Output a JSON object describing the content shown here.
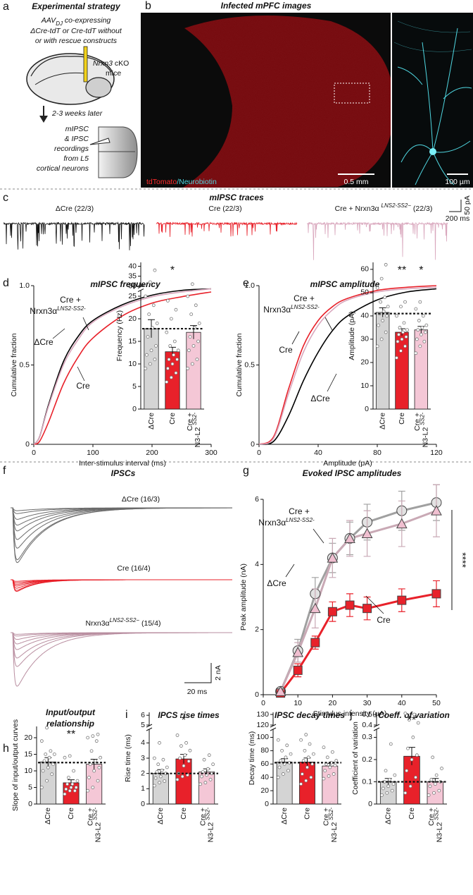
{
  "figure": {
    "a": {
      "letter": "a",
      "title": "Experimental strategy",
      "aav": "AAV",
      "aav_sub": "DJ",
      "line1_rest": " co-expressing",
      "line2": "ΔCre-tdT or Cre-tdT without",
      "line3": "or with rescue constructs",
      "mouse": "Nrxn3",
      "mouse_rest": " cKO",
      "mice": "mice",
      "wait": "2-3 weeks later",
      "recording": [
        "mIPSC",
        "& IPSC",
        "recordings",
        "from L5",
        "cortical neurons"
      ]
    },
    "b": {
      "letter": "b",
      "title": "Infected mPFC images",
      "stain1": "tdTomato",
      "stain2": "/Neurobiotin",
      "scale_main": "0.5 mm",
      "scale_inset": "100 µm"
    },
    "c": {
      "letter": "c",
      "title": "mIPSC traces",
      "labels": [
        "ΔCre (22/3)",
        "Cre (22/3)"
      ],
      "rescue": "Cre + Nrxn3α ",
      "rescue_sup": "LNS2-SS2−",
      "rescue_n": " (22/3)",
      "scale_y": "50 pA",
      "scale_x": "200 ms"
    },
    "f": {
      "letter": "f",
      "title": "IPSCs",
      "labels": [
        "ΔCre (16/3)",
        "Cre (16/4)"
      ],
      "rescue": "Nrxn3α",
      "rescue_sup": "LNS2-SS2−",
      "rescue_n": " (15/4)",
      "scale_y": "2 nA",
      "scale_x": "20 ms"
    }
  },
  "chart_data": [
    {
      "type": "line",
      "letter": "d",
      "title": "mIPSC frequency",
      "xlabel": "Inter-stimulus interval (ms)",
      "ylabel": "Cumulative fraction",
      "xlim": [
        0,
        300
      ],
      "xticks": [
        0,
        100,
        200,
        300
      ],
      "ylim": [
        0,
        1
      ],
      "yticks": [
        0,
        0.5,
        {
          "value": 1,
          "label": "1.0"
        }
      ],
      "x": [
        0,
        10,
        25,
        50,
        75,
        100,
        150,
        200,
        250,
        300
      ],
      "series": [
        {
          "name": "ΔCre",
          "color": "#000000",
          "values": [
            0,
            0.05,
            0.25,
            0.52,
            0.68,
            0.78,
            0.88,
            0.94,
            0.97,
            0.98
          ]
        },
        {
          "name": "Cre",
          "color": "#e8212a",
          "values": [
            0,
            0.02,
            0.14,
            0.38,
            0.55,
            0.67,
            0.81,
            0.89,
            0.93,
            0.96
          ]
        },
        {
          "name": "Cre +",
          "name_line2": "Nrxn3α",
          "name_sup": "LNS2-SS2-",
          "color": "#d9a7bd",
          "values": [
            0,
            0.05,
            0.24,
            0.5,
            0.66,
            0.77,
            0.87,
            0.93,
            0.96,
            0.98
          ]
        }
      ]
    },
    {
      "type": "bar",
      "ylabel": "Frequency (Hz)",
      "categories": [
        "ΔCre",
        "Cre",
        "Cre +"
      ],
      "category_line2": "N3-L2 ",
      "category_sup": "SS2-",
      "colors": [
        "#d4d4d4",
        "#e8212a",
        "#f4c7d6"
      ],
      "values": [
        17.8,
        12.7,
        17
      ],
      "errors": [
        2,
        1,
        1.5
      ],
      "reference": 17.8,
      "significance": [
        null,
        "*",
        null
      ],
      "ylim": [
        0,
        26
      ],
      "yticks": [
        0,
        5,
        10,
        15,
        20,
        25
      ],
      "ybreak": {
        "ylim": [
          30,
          42
        ],
        "yticks": [
          30,
          35,
          40
        ]
      },
      "points": [
        [
          9,
          10,
          11,
          12,
          13,
          14,
          16,
          18,
          19,
          21,
          23,
          25,
          32,
          38
        ],
        [
          6,
          7,
          8,
          9,
          10,
          11,
          11,
          12,
          13,
          14,
          15,
          17,
          20,
          22,
          24
        ],
        [
          9,
          10,
          11,
          13,
          14,
          15,
          16,
          18,
          19,
          21,
          23,
          25,
          31
        ]
      ]
    },
    {
      "type": "line",
      "letter": "e",
      "title": "mIPSC amplitude",
      "xlabel": "Amplitude (pA)",
      "ylabel": "Cumulative fraction",
      "xlim": [
        0,
        120
      ],
      "xticks": [
        0,
        40,
        80,
        120
      ],
      "ylim": [
        0,
        1
      ],
      "yticks": [
        0,
        0.5,
        {
          "value": 1,
          "label": "1.0"
        }
      ],
      "x": [
        0,
        10,
        20,
        30,
        40,
        50,
        60,
        80,
        100,
        120
      ],
      "series": [
        {
          "name": "ΔCre",
          "color": "#000000",
          "values": [
            0,
            0.02,
            0.18,
            0.4,
            0.58,
            0.72,
            0.81,
            0.91,
            0.96,
            0.98
          ]
        },
        {
          "name": "Cre",
          "color": "#e8212a",
          "values": [
            0,
            0.05,
            0.35,
            0.62,
            0.78,
            0.87,
            0.92,
            0.97,
            0.99,
            1
          ]
        },
        {
          "name": "Cre +",
          "name_line2": "Nrxn3α",
          "name_sup": "LNS2-SS2-",
          "color": "#d9a7bd",
          "values": [
            0,
            0.04,
            0.32,
            0.58,
            0.75,
            0.85,
            0.91,
            0.96,
            0.98,
            0.99
          ]
        }
      ]
    },
    {
      "type": "bar",
      "ylabel": "Amplitude (pA)",
      "categories": [
        "ΔCre",
        "Cre",
        "Cre +"
      ],
      "category_line2": "N3-L2 ",
      "category_sup": "SS2-",
      "colors": [
        "#d4d4d4",
        "#e8212a",
        "#f4c7d6"
      ],
      "values": [
        41.5,
        33,
        34
      ],
      "errors": [
        2,
        1.5,
        1.5
      ],
      "reference": 41,
      "significance": [
        null,
        "**",
        "*"
      ],
      "ylim": [
        0,
        63
      ],
      "yticks": [
        0,
        10,
        20,
        30,
        40,
        50,
        60
      ],
      "points": [
        [
          27,
          30,
          33,
          36,
          38,
          40,
          41,
          42,
          44,
          46,
          48,
          52,
          56,
          62
        ],
        [
          22,
          25,
          27,
          29,
          30,
          31,
          32,
          33,
          34,
          35,
          37,
          40,
          44,
          46
        ],
        [
          24,
          27,
          29,
          30,
          32,
          33,
          34,
          35,
          36,
          38,
          40,
          43,
          46
        ]
      ]
    },
    {
      "type": "line",
      "letter": "g",
      "title": "Evoked IPSC amplitudes",
      "xlabel": "Stimulus intensity (µA)",
      "ylabel": "Peak amplitude (nA)",
      "xlim": [
        0,
        50
      ],
      "xticks": [
        0,
        10,
        20,
        30,
        40,
        50
      ],
      "ylim": [
        0,
        6
      ],
      "yticks": [
        0,
        2,
        4,
        6
      ],
      "significance": "****",
      "x": [
        5,
        10,
        15,
        20,
        25,
        30,
        40,
        50
      ],
      "series": [
        {
          "name": "ΔCre",
          "color": "#a0a0a0",
          "marker": "circle",
          "marker_color": "#e2e2e2",
          "values": [
            0.1,
            1.35,
            3.1,
            4.2,
            4.8,
            5.3,
            5.65,
            5.9
          ],
          "errors": [
            0.05,
            0.35,
            0.5,
            0.45,
            0.5,
            0.55,
            0.6,
            0.55
          ]
        },
        {
          "name": "Cre",
          "color": "#e8212a",
          "marker": "square",
          "marker_color": "#e8212a",
          "values": [
            0.05,
            0.75,
            1.6,
            2.55,
            2.75,
            2.65,
            2.9,
            3.1
          ],
          "errors": [
            0.03,
            0.2,
            0.2,
            0.3,
            0.35,
            0.35,
            0.35,
            0.4
          ]
        },
        {
          "name": "Cre +",
          "name_line2": "Nrxn3α",
          "name_sup": "LNS2-SS2-",
          "color": "#c9a9b5",
          "marker": "triangle",
          "marker_color": "#f0bfd0",
          "values": [
            0.1,
            1.3,
            2.65,
            4.2,
            4.8,
            4.95,
            5.25,
            5.65
          ],
          "errors": [
            0.05,
            0.3,
            0.6,
            0.6,
            0.55,
            0.7,
            0.7,
            0.8
          ]
        }
      ]
    },
    {
      "type": "bar",
      "letter": "h",
      "title": [
        "Input/output",
        "relationship"
      ],
      "ylabel": "Slope of input/output curves",
      "categories": [
        "ΔCre",
        "Cre",
        "Cre +"
      ],
      "category_line2": "N3-L2 ",
      "category_sup": "SS2-",
      "colors": [
        "#d4d4d4",
        "#e8212a",
        "#f4c7d6"
      ],
      "values": [
        12.7,
        6.4,
        12
      ],
      "errors": [
        1.3,
        0.9,
        1.5
      ],
      "reference": 12.5,
      "significance": [
        null,
        "**",
        null
      ],
      "ylim": [
        0,
        23.4
      ],
      "yticks": [
        0,
        5,
        10,
        15,
        20
      ],
      "points": [
        [
          5,
          7,
          9,
          10,
          11,
          12,
          13,
          14,
          15,
          15,
          16,
          19,
          23
        ],
        [
          3,
          4,
          4,
          4.5,
          5,
          5,
          6,
          6,
          7,
          8,
          10,
          14,
          14.5
        ],
        [
          4,
          5,
          7,
          8,
          10,
          11,
          12,
          13,
          14,
          16,
          19,
          20,
          20.5,
          21
        ]
      ]
    },
    {
      "type": "bar",
      "letter": "i",
      "title": "IPCS rise times",
      "ylabel": "Rise time (ms)",
      "categories": [
        "ΔCre",
        "Cre",
        "Cre +"
      ],
      "category_line2": "N3-L2 ",
      "category_sup": "SS2-",
      "colors": [
        "#d4d4d4",
        "#e8212a",
        "#f4c7d6"
      ],
      "values": [
        2,
        2.95,
        2.1
      ],
      "errors": [
        0.25,
        0.3,
        0.2
      ],
      "reference": 2,
      "significance": [
        null,
        "*",
        null
      ],
      "ylim": [
        0,
        4.8
      ],
      "yticks": [
        0,
        1,
        2,
        3,
        4
      ],
      "ybreak": {
        "ylim": [
          5,
          6.3
        ],
        "yticks": [
          5,
          6
        ]
      },
      "points": [
        [
          1.2,
          1.4,
          1.5,
          1.7,
          1.8,
          2,
          2.1,
          2.2,
          2.4,
          2.6,
          2.9,
          3,
          4
        ],
        [
          1.6,
          1.8,
          1.9,
          2,
          2.5,
          2.8,
          3,
          3.2,
          3.5,
          3.8,
          4,
          4.5,
          5.9
        ],
        [
          1.3,
          1.4,
          1.6,
          1.8,
          1.9,
          2,
          2.1,
          2.3,
          2.6,
          2.9,
          3.2
        ]
      ]
    },
    {
      "type": "bar",
      "title": "IPSC decay times",
      "ylabel": "Decay time (ms)",
      "categories": [
        "ΔCre",
        "Cre",
        "Cre +"
      ],
      "category_line2": "N3-L2 ",
      "category_sup": "SS2-",
      "colors": [
        "#d4d4d4",
        "#e8212a",
        "#f4c7d6"
      ],
      "values": [
        63,
        63,
        57
      ],
      "errors": [
        5,
        6,
        4
      ],
      "reference": 62,
      "significance": [
        null,
        null,
        null
      ],
      "ylim": [
        0,
        110
      ],
      "yticks": [
        0,
        20,
        40,
        60,
        80,
        100
      ],
      "ybreak": {
        "ylim": [
          120,
          132
        ],
        "yticks": [
          120,
          130
        ]
      },
      "points": [
        [
          40,
          45,
          50,
          55,
          60,
          62,
          65,
          70,
          75,
          80,
          88,
          96
        ],
        [
          30,
          35,
          40,
          45,
          55,
          60,
          65,
          70,
          75,
          80,
          90,
          96,
          104
        ],
        [
          38,
          42,
          45,
          50,
          55,
          58,
          60,
          62,
          65,
          70,
          78,
          85
        ]
      ]
    },
    {
      "type": "bar",
      "letter": "j",
      "title": "Coeff. of variation",
      "ylabel": "Coefficient of variation",
      "categories": [
        "ΔCre",
        "Cre",
        "Cre +"
      ],
      "category_line2": "N3-L2 ",
      "category_sup": "SS2-",
      "colors": [
        "#d4d4d4",
        "#e8212a",
        "#f4c7d6"
      ],
      "values": [
        0.1,
        0.215,
        0.1
      ],
      "errors": [
        0.015,
        0.04,
        0.015
      ],
      "reference": 0.1,
      "significance": [
        null,
        "**",
        null
      ],
      "ylim": [
        0,
        0.33
      ],
      "yticks": [
        0,
        0.1,
        0.2,
        0.3
      ],
      "ybreak": {
        "ylim": [
          0.4,
          0.52
        ],
        "yticks": [
          0.4,
          0.5
        ]
      },
      "points": [
        [
          0.04,
          0.05,
          0.06,
          0.07,
          0.08,
          0.09,
          0.1,
          0.11,
          0.13,
          0.15,
          0.27
        ],
        [
          0.05,
          0.08,
          0.12,
          0.15,
          0.2,
          0.22,
          0.25,
          0.3,
          0.42,
          0.45,
          0.5,
          0.51
        ],
        [
          0.04,
          0.05,
          0.06,
          0.08,
          0.09,
          0.1,
          0.11,
          0.13,
          0.16,
          0.21
        ]
      ]
    }
  ]
}
